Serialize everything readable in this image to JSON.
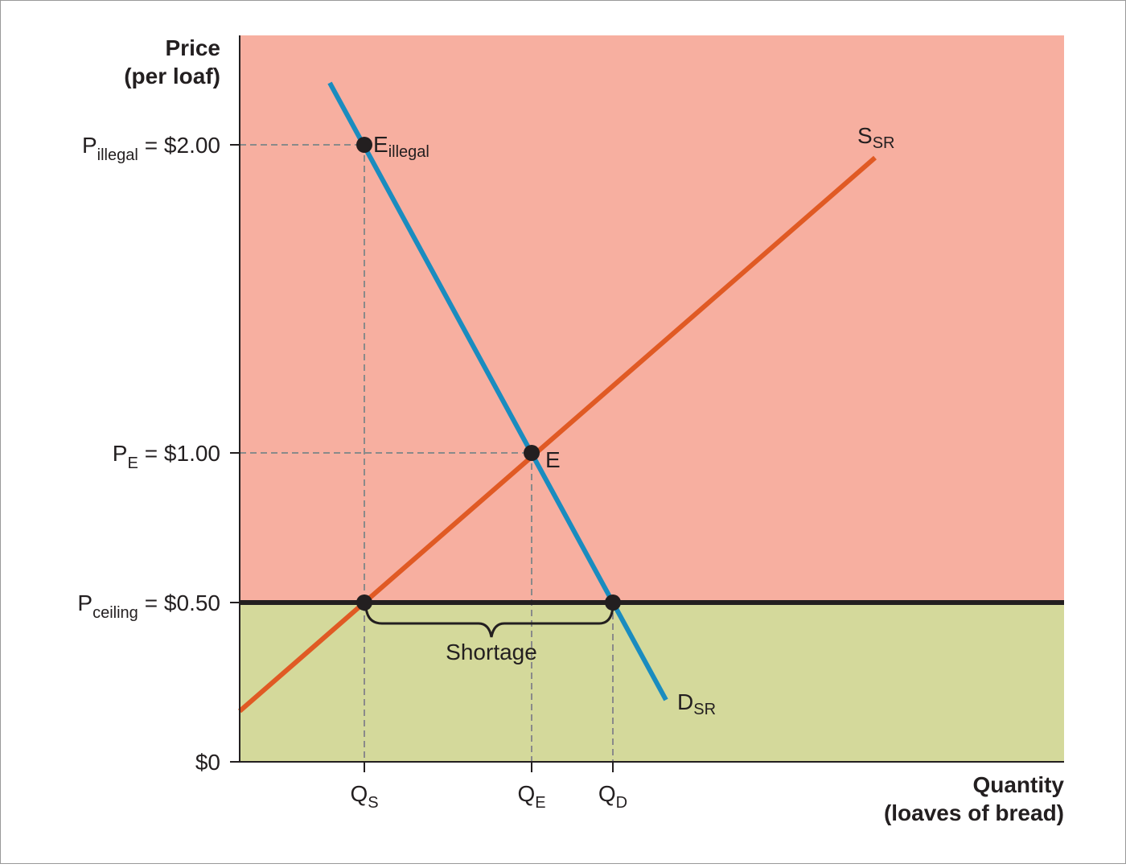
{
  "y_axis": {
    "title": [
      "Price",
      "(per loaf)"
    ],
    "labels": [
      {
        "main": "P",
        "sub": "illegal",
        "rest": "= $2.00"
      },
      {
        "main": "P",
        "sub": "E",
        "rest": "= $1.00"
      },
      {
        "main": "P",
        "sub": "ceiling",
        "rest": "= $0.50"
      },
      {
        "main": "$0"
      }
    ]
  },
  "x_axis": {
    "title": [
      "Quantity",
      "(loaves of bread)"
    ],
    "labels": [
      {
        "main": "Q",
        "sub": "S"
      },
      {
        "main": "Q",
        "sub": "E"
      },
      {
        "main": "Q",
        "sub": "D"
      }
    ]
  },
  "curves": {
    "supply": {
      "main": "S",
      "sub": "SR"
    },
    "demand": {
      "main": "D",
      "sub": "SR"
    }
  },
  "points": {
    "illegal": {
      "main": "E",
      "sub": "illegal"
    },
    "equilibrium": {
      "main": "E"
    }
  },
  "annotation": "Shortage"
}
